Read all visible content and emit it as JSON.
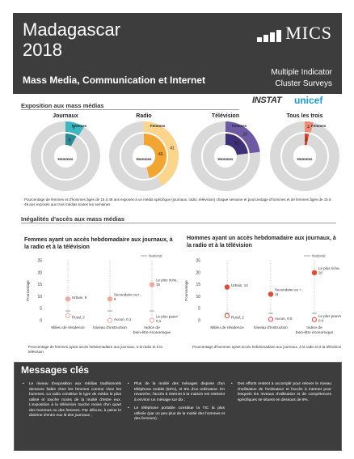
{
  "header": {
    "country": "Madagascar",
    "year": "2018",
    "logo_text": "MICS",
    "report_title": "Mass Media, Communication et Internet",
    "subtitle_line1": "Multiple Indicator",
    "subtitle_line2": "Cluster Surveys"
  },
  "logos": {
    "instat": "INSTAT",
    "unicef": "unicef"
  },
  "section1": {
    "title": "Exposition aux mass médias",
    "note": "Pourcentage de femmes et d'hommes âgés de 15 à 49 ans exposés à un média spécifique (journaux, radio, télévision) chaque semaine et pourcentage d'hommes et de femmes âgés de 15 à 49 ans exposés aux trois médias toutes les semaines"
  },
  "section2": {
    "title": "Inégalités d'accès aux mass médias"
  },
  "donut_labels": {
    "femmes": "Femmes",
    "hommes": "Hommes"
  },
  "chart_data": [
    {
      "type": "pie",
      "title": "Journaux",
      "series": [
        {
          "name": "Femmes",
          "value": 9,
          "color": "#3bb7c4"
        },
        {
          "name": "Hommes",
          "value": 8,
          "color": "#2a8a96"
        }
      ],
      "outer_ring_color": "#d9d9d9"
    },
    {
      "type": "pie",
      "title": "Radio",
      "series": [
        {
          "name": "Femmes",
          "value": 41,
          "color": "#fcd58c"
        },
        {
          "name": "Hommes",
          "value": 46,
          "color": "#f2a530"
        }
      ],
      "outer_ring_color": "#d9d9d9"
    },
    {
      "type": "pie",
      "title": "Télévision",
      "series": [
        {
          "name": "Femmes",
          "value": 23,
          "color": "#6d5aa3"
        },
        {
          "name": "Hommes",
          "value": 23,
          "color": "#3f2f77"
        }
      ],
      "outer_ring_color": "#d9d9d9"
    },
    {
      "type": "pie",
      "title": "Tous les trois",
      "series": [
        {
          "name": "Femmes",
          "value": 4,
          "color": "#f08b6f"
        },
        {
          "name": "Hommes",
          "value": 3,
          "color": "#d9432b"
        }
      ],
      "outer_ring_color": "#d9d9d9"
    },
    {
      "type": "scatter",
      "title": "Femmes ayant un accès hebdomadaire aux journaux, à la radio et à la télévision",
      "ylabel": "Pourcentage",
      "ylim": [
        0,
        25
      ],
      "yticks": [
        0,
        5,
        10,
        15,
        20,
        25
      ],
      "legend": "National",
      "national": 4,
      "categories": [
        "Milieu de résidence",
        "Niveau d'instruction",
        "Indice de bien-être économique"
      ],
      "points": [
        {
          "category": 0,
          "value": 9,
          "label": "Urbain, 9",
          "style": "filled"
        },
        {
          "category": 0,
          "value": 2,
          "label": "Rural, 2",
          "style": "hollow"
        },
        {
          "category": 1,
          "value": 9,
          "label": "Secondaire ou+, 9",
          "style": "filled"
        },
        {
          "category": 1,
          "value": 0.1,
          "label": "Aucun, 0,1",
          "style": "hollow"
        },
        {
          "category": 2,
          "value": 15,
          "label": "Le plus riche, 15",
          "style": "filled"
        },
        {
          "category": 2,
          "value": 0.1,
          "label": "Le plus pauvre, 0,1",
          "style": "hollow"
        }
      ],
      "note": "Pourcentage de femmes ayant accès hebdomadaire aux journaux, à la radio et à la télévision"
    },
    {
      "type": "scatter",
      "title": "Hommes ayant un accès hebdomadaire aux journaux, à la radio et à la télévision",
      "ylabel": "Pourcentage",
      "ylim": [
        0,
        25
      ],
      "yticks": [
        0,
        5,
        10,
        15,
        20,
        25
      ],
      "legend": "National",
      "national": 3,
      "categories": [
        "Milieu de résidence",
        "Niveau d'instruction",
        "Indice de bien-être économique"
      ],
      "points": [
        {
          "category": 0,
          "value": 14,
          "label": "Urbain, 14",
          "style": "filled"
        },
        {
          "category": 0,
          "value": 2,
          "label": "Rural, 2",
          "style": "hollow"
        },
        {
          "category": 1,
          "value": 11,
          "label": "Secondaire ou + , 11",
          "style": "filled"
        },
        {
          "category": 1,
          "value": 0.5,
          "label": "Aucun, 0,5",
          "style": "hollow"
        },
        {
          "category": 2,
          "value": 20,
          "label": "Le plus riche, 20",
          "style": "filled"
        },
        {
          "category": 2,
          "value": 0.4,
          "label": "Le plus pauvre, 0,4",
          "style": "hollow"
        }
      ],
      "note": "Pourcentage d'hommes ayant accès hebdomadaire aux journaux, à la radio et à la télévision"
    }
  ],
  "messages": {
    "title": "Messages clés",
    "col1": [
      "Le niveau d'exposition aux médias traditionnels demeure faible chez les femmes comme chez les hommes. La radio constitue le type de média le plus utilisé et touche moins de la moitié d'entre eux. L'exposition à la télévision touche moins d'un quart des hommes ou des femmes. Par ailleurs, à peine le dixième d'entre eux lit des journaux ;"
    ],
    "col2": [
      "Plus de la moitié des ménages dispose d'un téléphone mobile (52%), et 5% d'un ordinateur. En revanche, l'accès à internet à la maison est restreint à environ un ménage sur dix ;",
      "Le téléphone portable constitue la TIC la plus utilisée (par un peu plus de la moitié des hommes et des femmes) ;"
    ],
    "col3": [
      "Des efforts restent à accomplir pour relever le niveau d'utilisation de l'ordinateur et l'accès à internet pour lesquels les niveaux d'utilisation et de compétences spécifiques se situent en dessous de 8%."
    ]
  },
  "colors": {
    "header_bg": "#3d3d3d",
    "hommes_point": "#e04b33",
    "femmes_point": "#f4a898",
    "national_line": "#aab4c0"
  }
}
